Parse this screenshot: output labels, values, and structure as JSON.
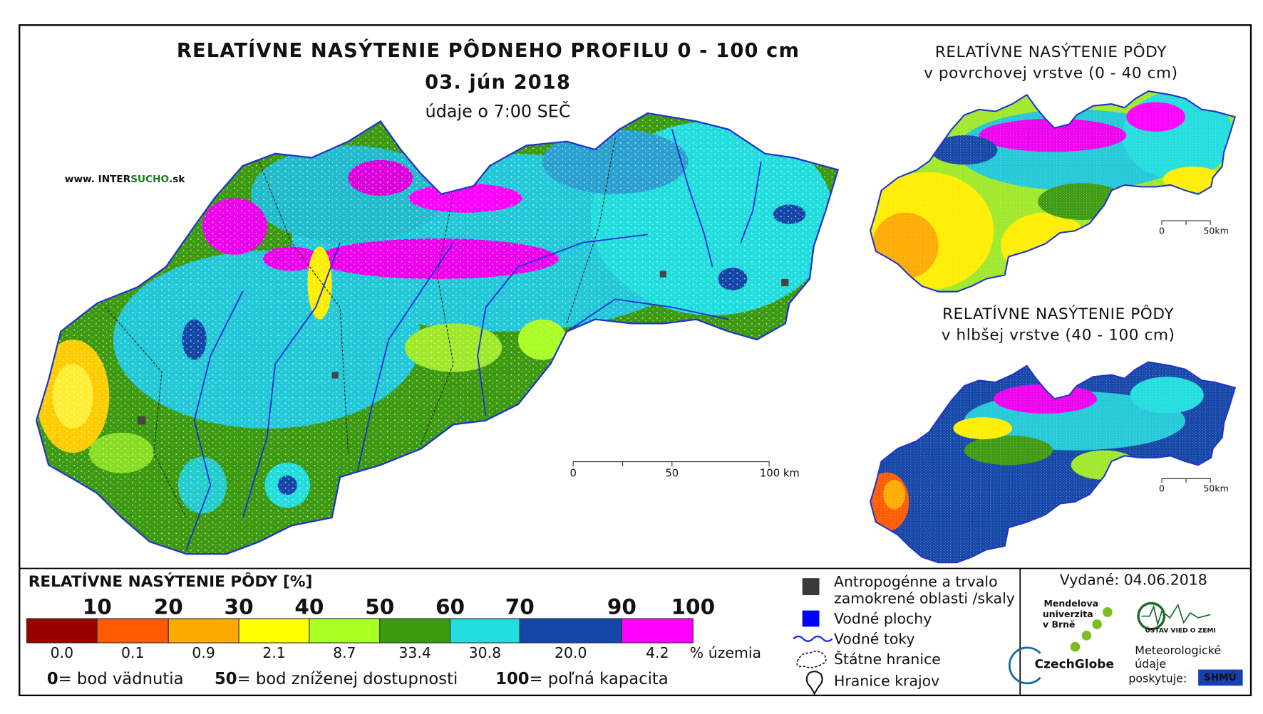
{
  "main_map": {
    "title": "RELATÍVNE NASÝTENIE PÔDNEHO PROFILU 0 - 100 cm",
    "date": "03. jún 2018",
    "time": "údaje o 7:00 SEČ",
    "website": {
      "prefix": "www. INTER",
      "highlight": "SUCHO",
      "suffix": ".sk"
    },
    "scale_labels": [
      "0",
      "50",
      "100 km"
    ]
  },
  "surface_map": {
    "title": "RELATÍVNE NASÝTENIE PÔDY",
    "subtitle": "v povrchovej vrstve (0 - 40 cm)",
    "scale_labels": [
      "0",
      "50km"
    ]
  },
  "deep_map": {
    "title": "RELATÍVNE NASÝTENIE PÔDY",
    "subtitle": "v hlbšej vrstve (40 - 100 cm)",
    "scale_labels": [
      "0",
      "50km"
    ]
  },
  "legend": {
    "title": "RELATÍVNE NASÝTENIE PÔDY [%]",
    "thresholds": [
      "10",
      "20",
      "30",
      "40",
      "50",
      "60",
      "70",
      "90",
      "100"
    ],
    "classes": [
      {
        "color": "#990000",
        "share": "0.0"
      },
      {
        "color": "#ff5a00",
        "share": "0.1"
      },
      {
        "color": "#ffaa00",
        "share": "0.9"
      },
      {
        "color": "#ffff00",
        "share": "2.1"
      },
      {
        "color": "#aaff22",
        "share": "8.7"
      },
      {
        "color": "#3c9a10",
        "share": "33.4"
      },
      {
        "color": "#22dddd",
        "share": "30.8"
      },
      {
        "color": "#1446a8",
        "share": "20.0"
      },
      {
        "color": "#ff00ff",
        "share": "4.2"
      }
    ],
    "share_unit": "% územia",
    "notes": [
      {
        "key": "0",
        "text": "= bod vädnutia"
      },
      {
        "key": "50",
        "text": "= bod zníženej dostupnosti"
      },
      {
        "key": "100",
        "text": "= poľná kapacita"
      }
    ]
  },
  "symbols": [
    {
      "lines": [
        "Antropogénne a trvalo",
        "zamokrené oblasti /skaly"
      ]
    },
    {
      "lines": [
        "Vodné plochy"
      ]
    },
    {
      "lines": [
        "Vodné toky"
      ]
    },
    {
      "lines": [
        "Štátne hranice"
      ]
    },
    {
      "lines": [
        "Hranice krajov"
      ]
    }
  ],
  "footer": {
    "issued": "Vydané: 04.06.2018",
    "mendel": [
      "Mendelova",
      "univerzita",
      "v Brně"
    ],
    "czechglobe": "CzechGlobe",
    "ustav": "ÚSTAV VIED O ZEMI",
    "provider": [
      "Meteorologické",
      "údaje",
      "poskytuje:"
    ],
    "shmu": "SHMÚ"
  }
}
